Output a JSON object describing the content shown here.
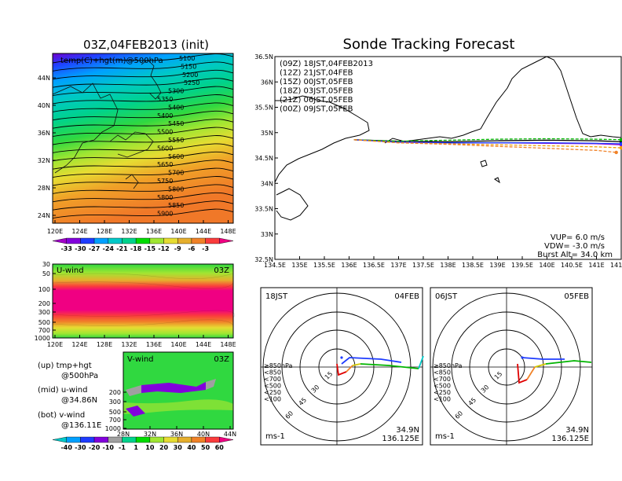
{
  "main_title": "Sonde Tracking Forecast",
  "left_title": "03Z,04FEB2013  (init)",
  "map500": {
    "label": "temp(C)+hgt(m)@500hPa",
    "contours": [
      "5100",
      "5150",
      "5200",
      "5250",
      "5300",
      "5350",
      "5400",
      "5400",
      "5450",
      "5500",
      "5550",
      "5600",
      "5600",
      "5650",
      "5700",
      "5750",
      "5800",
      "5800",
      "5850",
      "5900"
    ],
    "yticks": [
      "44N",
      "40N",
      "36N",
      "32N",
      "28N",
      "24N"
    ],
    "xticks": [
      "120E",
      "124E",
      "128E",
      "132E",
      "136E",
      "140E",
      "144E",
      "148E"
    ]
  },
  "temp_colorbar": {
    "labels": [
      "-33",
      "-30",
      "-27",
      "-24",
      "-21",
      "-18",
      "-15",
      "-12",
      "-9",
      "-6",
      "-3"
    ],
    "colors": [
      "#a000c8",
      "#8200dc",
      "#1e3cff",
      "#00a0ff",
      "#00c8c8",
      "#00d28c",
      "#00dc00",
      "#a0e632",
      "#e6dc32",
      "#e6af2d",
      "#f08228",
      "#fa3c3c",
      "#f00082"
    ]
  },
  "uwind": {
    "label": "U-wind",
    "time": "03Z",
    "yticks": [
      "30",
      "50",
      "100",
      "200",
      "300",
      "500",
      "700",
      "1000"
    ],
    "xticks": [
      "120E",
      "124E",
      "128E",
      "132E",
      "136E",
      "140E",
      "144E",
      "148E"
    ]
  },
  "vwind": {
    "label": "V-wind",
    "time": "03Z",
    "yticks": [
      "200",
      "300",
      "500",
      "700",
      "1000"
    ],
    "xticks": [
      "28N",
      "32N",
      "36N",
      "40N",
      "44N"
    ]
  },
  "notes": {
    "up1": "(up) tmp+hgt",
    "up2": "@500hPa",
    "mid1": "(mid) u-wind",
    "mid2": "@34.86N",
    "bot1": "(bot) v-wind",
    "bot2": "@136.11E"
  },
  "wind_colorbar": {
    "labels": [
      "-40",
      "-30",
      "-20",
      "-10",
      "-1",
      "1",
      "10",
      "20",
      "30",
      "40",
      "50",
      "60"
    ],
    "colors": [
      "#00c8c8",
      "#00a0ff",
      "#1e3cff",
      "#8200dc",
      "#a0a0a0",
      "#00d28c",
      "#00dc00",
      "#a0e632",
      "#e6dc32",
      "#e6af2d",
      "#f08228",
      "#fa3c3c",
      "#f00082"
    ]
  },
  "track": {
    "legend": [
      {
        "text": "(09Z)  18JST,04FEB2013",
        "color": "#000000"
      },
      {
        "text": "(12Z)  21JST,04FEB",
        "color": "#a000c8"
      },
      {
        "text": "(15Z)  00JST,05FEB",
        "color": "#1e3cff"
      },
      {
        "text": "(18Z)  03JST,05FEB",
        "color": "#00b400"
      },
      {
        "text": "(21Z)  06JST,05FEB",
        "color": "#f0a000"
      },
      {
        "text": "(00Z)  09JST,05FEB",
        "color": "#f08228"
      }
    ],
    "yticks": [
      "36.5N",
      "36N",
      "35.5N",
      "35N",
      "34.5N",
      "34N",
      "33.5N",
      "33N",
      "32.5N"
    ],
    "xticks": [
      "134.5E",
      "135E",
      "135.5E",
      "136E",
      "136.5E",
      "137E",
      "137.5E",
      "138E",
      "138.5E",
      "139E",
      "139.5E",
      "140E",
      "140.5E",
      "141E",
      "141.5E"
    ],
    "vup": "VUP=  6.0  m/s",
    "vdw": "VDW= -3.0  m/s",
    "burst": "Burst Alt=  34.0  km"
  },
  "hodo_left": {
    "time": "18JST",
    "date": "04FEB",
    "rings": [
      "15",
      "30",
      "45",
      "60"
    ],
    "legend": [
      "≥850hPa",
      "<850",
      "<700",
      "<500",
      "<250",
      "<100"
    ],
    "legend_colors": [
      "#e00000",
      "#f08228",
      "#d2c800",
      "#00b400",
      "#00c8c8",
      "#1e3cff"
    ],
    "unit": "ms-1",
    "lat": "34.9N",
    "lon": "136.125E"
  },
  "hodo_right": {
    "time": "06JST",
    "date": "05FEB",
    "rings": [
      "15",
      "30",
      "45",
      "60"
    ],
    "legend": [
      "≥850hPa",
      "<850",
      "<700",
      "<500",
      "<250",
      "<100"
    ],
    "legend_colors": [
      "#e00000",
      "#f08228",
      "#d2c800",
      "#00b400",
      "#00c8c8",
      "#1e3cff"
    ],
    "unit": "ms-1",
    "lat": "34.9N",
    "lon": "136.125E"
  },
  "chart_data": {
    "type": "line",
    "title": "Sonde Tracking Forecast",
    "xlim": [
      134.5,
      141.5
    ],
    "ylim": [
      32.5,
      36.5
    ],
    "vup_ms": 6.0,
    "vdw_ms": -3.0,
    "burst_alt_km": 34.0,
    "series": [
      {
        "name": "(09Z)  18JST,04FEB2013",
        "x": [
          136.1,
          137.0,
          138.0,
          139.0,
          140.0,
          141.0,
          141.5
        ],
        "y": [
          34.86,
          34.83,
          34.82,
          34.84,
          34.85,
          34.84,
          34.82
        ]
      },
      {
        "name": "(12Z)  21JST,04FEB",
        "x": [
          136.1,
          137.0,
          138.0,
          139.0,
          140.0,
          141.0,
          141.5
        ],
        "y": [
          34.86,
          34.82,
          34.8,
          34.8,
          34.79,
          34.78,
          34.76
        ]
      },
      {
        "name": "(15Z)  00JST,05FEB",
        "x": [
          136.1,
          137.0,
          138.0,
          139.0,
          140.0,
          141.0,
          141.5
        ],
        "y": [
          34.86,
          34.81,
          34.8,
          34.8,
          34.8,
          34.79,
          34.78
        ]
      },
      {
        "name": "(18Z)  03JST,05FEB",
        "x": [
          136.1,
          137.0,
          138.0,
          139.0,
          140.0,
          141.0,
          141.5
        ],
        "y": [
          34.86,
          34.83,
          34.85,
          34.87,
          34.88,
          34.87,
          34.86
        ]
      },
      {
        "name": "(21Z)  06JST,05FEB",
        "x": [
          136.1,
          137.0,
          138.0,
          139.0,
          140.0,
          141.0,
          141.5
        ],
        "y": [
          34.86,
          34.8,
          34.78,
          34.76,
          34.74,
          34.72,
          34.7
        ]
      },
      {
        "name": "(00Z)  09JST,05FEB",
        "x": [
          136.1,
          137.0,
          138.0,
          139.0,
          140.0,
          141.0,
          141.4
        ],
        "y": [
          34.86,
          34.8,
          34.77,
          34.73,
          34.69,
          34.65,
          34.61
        ]
      }
    ]
  }
}
